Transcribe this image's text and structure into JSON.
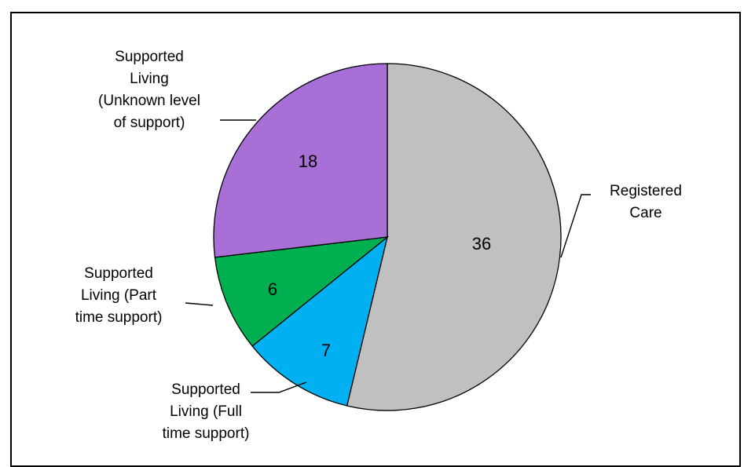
{
  "chart_data": {
    "type": "pie",
    "categories": [
      "Registered Care",
      "Supported Living (Full time support)",
      "Supported Living (Part time support)",
      "Supported Living (Unknown level of support)"
    ],
    "values": [
      36,
      7,
      6,
      18
    ],
    "data_labels": [
      "36",
      "7",
      "6",
      "18"
    ],
    "category_label_lines": [
      [
        "Registered",
        "Care"
      ],
      [
        "Supported",
        "Living (Full",
        "time support)"
      ],
      [
        "Supported",
        "Living (Part",
        "time support)"
      ],
      [
        "Supported",
        "Living",
        "(Unknown level",
        "of support)"
      ]
    ],
    "colors": [
      "#c0c0c0",
      "#00b0f0",
      "#00b050",
      "#a86fd6"
    ],
    "start": "12 o'clock",
    "direction": "clockwise",
    "legend": "none"
  }
}
